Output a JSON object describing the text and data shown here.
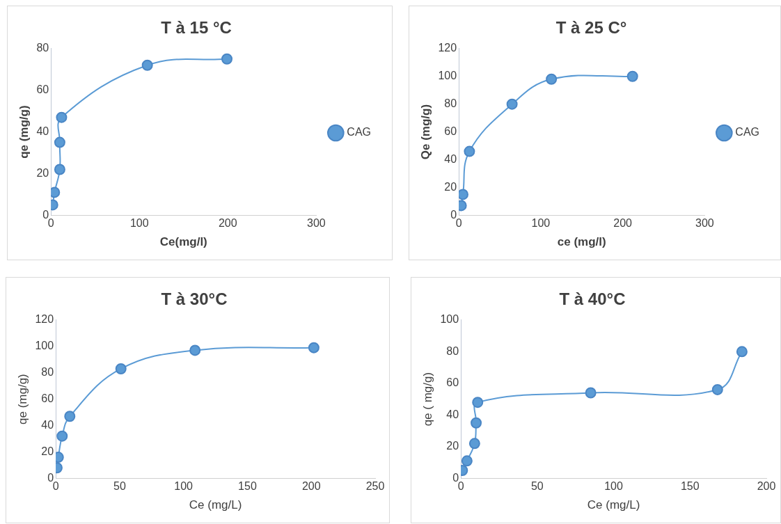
{
  "chart_data": [
    {
      "type": "line",
      "title": "T à 15 °C",
      "xlabel": "Ce(mg/l)",
      "ylabel": "qe (mg/g)",
      "xlim": [
        0,
        300
      ],
      "xticks": [
        0,
        100,
        200,
        300
      ],
      "ylim": [
        0,
        80
      ],
      "yticks": [
        0,
        20,
        40,
        60,
        80
      ],
      "grid": false,
      "legend": "right",
      "marker": "circle",
      "series": [
        {
          "name": "CAG",
          "color": "#5b9bd5",
          "x": [
            2,
            4,
            10,
            10,
            12,
            109,
            199
          ],
          "values": [
            5,
            11,
            22,
            35,
            47,
            72,
            75
          ]
        }
      ]
    },
    {
      "type": "line",
      "title": "T à 25 C°",
      "xlabel": "ce (mg/l)",
      "ylabel": "Qe (mg/g)",
      "xlim": [
        0,
        300
      ],
      "xticks": [
        0,
        100,
        200,
        300
      ],
      "ylim": [
        0,
        120
      ],
      "yticks": [
        0,
        20,
        40,
        60,
        80,
        100,
        120
      ],
      "grid": false,
      "legend": "right",
      "marker": "circle",
      "series": [
        {
          "name": "CAG",
          "color": "#5b9bd5",
          "x": [
            3,
            5,
            13,
            65,
            113,
            212
          ],
          "values": [
            7,
            15,
            46,
            80,
            98,
            100
          ]
        }
      ]
    },
    {
      "type": "line",
      "title": "T à 30°C",
      "xlabel": "Ce (mg/L)",
      "ylabel": "qe (mg/g)",
      "xlim": [
        0,
        250
      ],
      "xticks": [
        0,
        50,
        100,
        150,
        200,
        250
      ],
      "ylim": [
        0,
        120
      ],
      "yticks": [
        0,
        20,
        40,
        60,
        80,
        100,
        120
      ],
      "grid": false,
      "marker": "circle",
      "series": [
        {
          "color": "#5b9bd5",
          "x": [
            1,
            2,
            5,
            11,
            51,
            109,
            202
          ],
          "values": [
            8,
            16,
            32,
            47,
            83,
            97,
            99
          ]
        }
      ]
    },
    {
      "type": "line",
      "title": "T à 40°C",
      "xlabel": "Ce (mg/L)",
      "ylabel": "qe ( mg/g)",
      "xlim": [
        0,
        200
      ],
      "xticks": [
        0,
        50,
        100,
        150,
        200
      ],
      "ylim": [
        0,
        100
      ],
      "yticks": [
        0,
        20,
        40,
        60,
        80,
        100
      ],
      "grid": false,
      "marker": "circle",
      "series": [
        {
          "color": "#5b9bd5",
          "x": [
            1,
            4,
            9,
            10,
            11,
            85,
            168,
            184
          ],
          "values": [
            5,
            11,
            22,
            35,
            48,
            54,
            56,
            80
          ]
        }
      ]
    }
  ]
}
